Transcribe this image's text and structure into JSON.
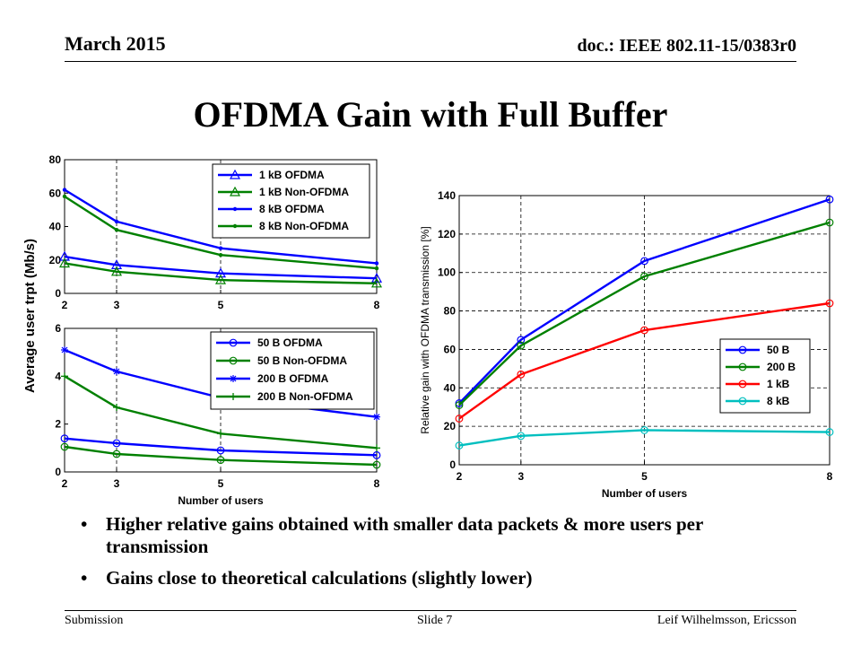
{
  "header": {
    "date": "March 2015",
    "doc": "doc.: IEEE 802.11-15/0383r0"
  },
  "title": "OFDMA Gain with Full Buffer",
  "bullets": [
    "Higher relative gains obtained with smaller data packets & more users per transmission",
    "Gains close to theoretical calculations (slightly lower)"
  ],
  "footer": {
    "left": "Submission",
    "center": "Slide 7",
    "right": "Leif Wilhelmsson, Ericsson"
  },
  "colors": {
    "blue": "#0000ff",
    "green": "#008000",
    "red": "#ff0000",
    "cyan": "#00bfbf"
  },
  "chart_data": [
    {
      "type": "line",
      "ylabel": "Average user trpt (Mb/s)",
      "shared_ylabel_with_next": true,
      "xlabel": "",
      "x": [
        2,
        3,
        5,
        8
      ],
      "xticks": [
        "2",
        "3",
        "5",
        "8"
      ],
      "ylim": [
        0,
        80
      ],
      "yticks": [
        "0",
        "20",
        "40",
        "60",
        "80"
      ],
      "grid": "dashed-vertical",
      "legend_placement": "top-right",
      "series": [
        {
          "name": "1 kB OFDMA",
          "color": "#0000ff",
          "marker": "triangle",
          "values": [
            22,
            17,
            12,
            9
          ]
        },
        {
          "name": "1 kB Non-OFDMA",
          "color": "#008000",
          "marker": "triangle",
          "values": [
            18,
            13,
            8,
            6
          ]
        },
        {
          "name": "8 kB OFDMA",
          "color": "#0000ff",
          "marker": "dot",
          "values": [
            62,
            43,
            27,
            18
          ]
        },
        {
          "name": "8 kB Non-OFDMA",
          "color": "#008000",
          "marker": "dot",
          "values": [
            58,
            38,
            23,
            15
          ]
        }
      ]
    },
    {
      "type": "line",
      "xlabel": "Number of users",
      "x": [
        2,
        3,
        5,
        8
      ],
      "xticks": [
        "2",
        "3",
        "5",
        "8"
      ],
      "ylim": [
        0,
        6
      ],
      "yticks": [
        "0",
        "2",
        "4",
        "6"
      ],
      "grid": "dashed-vertical",
      "legend_placement": "top-right",
      "series": [
        {
          "name": "50 B OFDMA",
          "color": "#0000ff",
          "marker": "circle",
          "values": [
            1.4,
            1.2,
            0.9,
            0.7
          ]
        },
        {
          "name": "50 B Non-OFDMA",
          "color": "#008000",
          "marker": "circle",
          "values": [
            1.05,
            0.75,
            0.5,
            0.3
          ]
        },
        {
          "name": "200 B OFDMA",
          "color": "#0000ff",
          "marker": "star",
          "values": [
            5.1,
            4.2,
            3.1,
            2.3
          ]
        },
        {
          "name": "200 B Non-OFDMA",
          "color": "#008000",
          "marker": "plus",
          "values": [
            4,
            2.7,
            1.6,
            1
          ]
        }
      ]
    },
    {
      "type": "line",
      "ylabel": "Relative gain with OFDMA transmission [%]",
      "xlabel": "Number of users",
      "x": [
        2,
        3,
        5,
        8
      ],
      "xticks": [
        "2",
        "3",
        "5",
        "8"
      ],
      "ylim": [
        0,
        140
      ],
      "yticks": [
        "0",
        "20",
        "40",
        "60",
        "80",
        "100",
        "120",
        "140"
      ],
      "grid": "dashed-both",
      "legend_placement": "lower-right",
      "series": [
        {
          "name": "50 B",
          "color": "#0000ff",
          "marker": "circle",
          "values": [
            32,
            65,
            106,
            138
          ]
        },
        {
          "name": "200 B",
          "color": "#008000",
          "marker": "circle",
          "values": [
            31,
            62,
            98,
            126
          ]
        },
        {
          "name": "1 kB",
          "color": "#ff0000",
          "marker": "circle",
          "values": [
            24,
            47,
            70,
            84
          ]
        },
        {
          "name": "8 kB",
          "color": "#00bfbf",
          "marker": "circle",
          "values": [
            10,
            15,
            18,
            17
          ]
        }
      ]
    }
  ]
}
